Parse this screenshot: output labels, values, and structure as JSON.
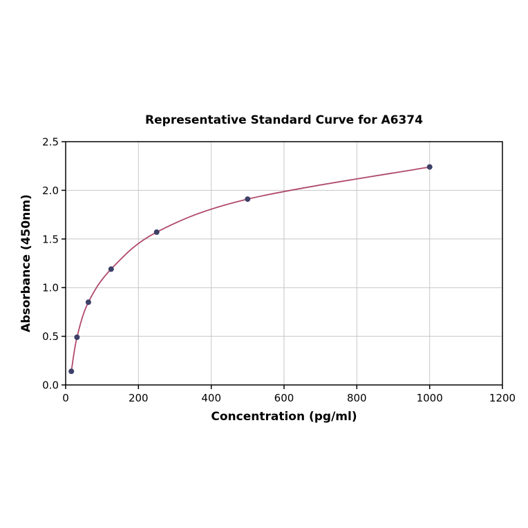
{
  "figure": {
    "background": "#ffffff"
  },
  "chart_data": {
    "type": "line",
    "title": "Representative Standard Curve for A6374",
    "xlabel": "Concentration (pg/ml)",
    "ylabel": "Absorbance (450nm)",
    "xlim": [
      0,
      1200
    ],
    "ylim": [
      0.0,
      2.5
    ],
    "x_ticks": [
      0,
      200,
      400,
      600,
      800,
      1000,
      1200
    ],
    "x_tick_labels": [
      "0",
      "200",
      "400",
      "600",
      "800",
      "1000",
      "1200"
    ],
    "y_ticks": [
      0.0,
      0.5,
      1.0,
      1.5,
      2.0,
      2.5
    ],
    "y_tick_labels": [
      "0.0",
      "0.5",
      "1.0",
      "1.5",
      "2.0",
      "2.5"
    ],
    "grid": true,
    "legend": "none",
    "grid_color": "#c6c6c6",
    "axis_color": "#000000",
    "series": [
      {
        "name": "standard-curve",
        "line_color": "#b0486e",
        "marker_color": "#3d4067",
        "points": [
          {
            "x": 15.6,
            "y": 0.14
          },
          {
            "x": 31.2,
            "y": 0.49
          },
          {
            "x": 62.5,
            "y": 0.85
          },
          {
            "x": 125,
            "y": 1.19
          },
          {
            "x": 250,
            "y": 1.57
          },
          {
            "x": 500,
            "y": 1.91
          },
          {
            "x": 1000,
            "y": 2.24
          }
        ]
      }
    ]
  }
}
